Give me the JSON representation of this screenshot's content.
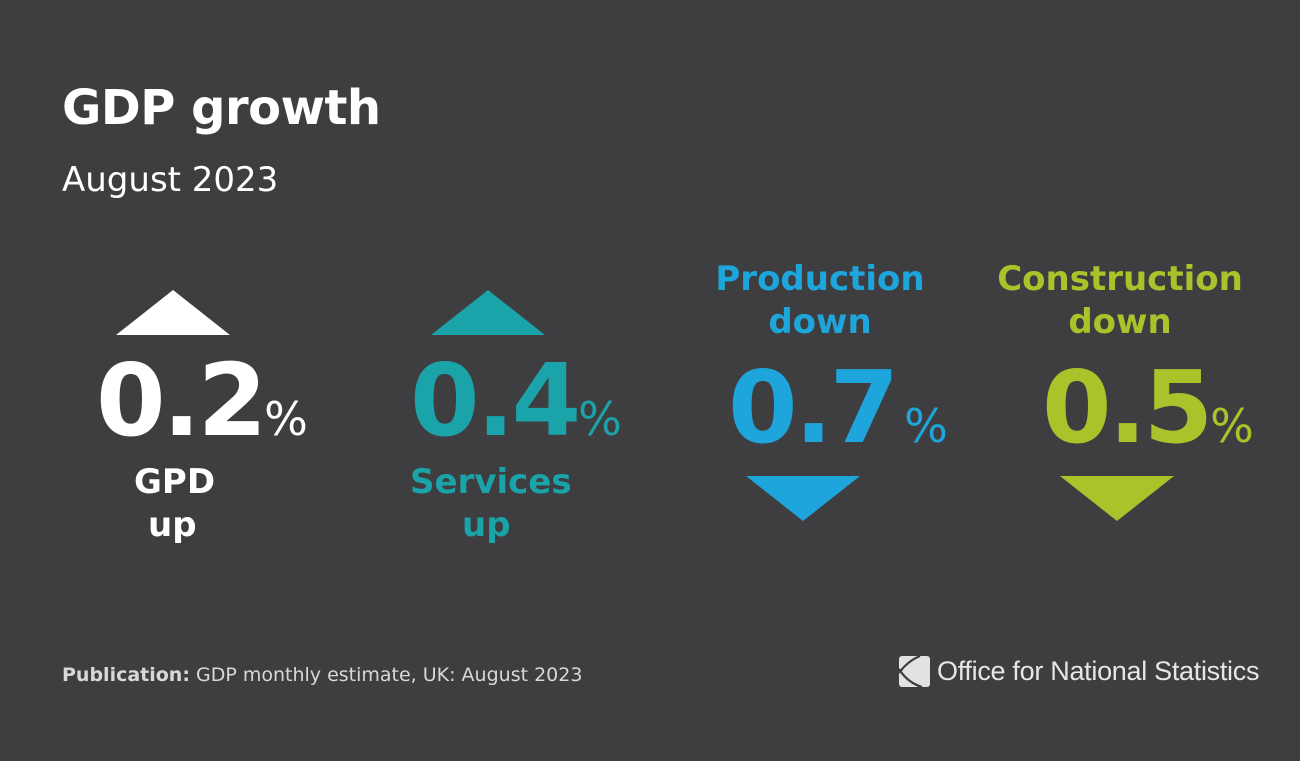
{
  "header": {
    "title": "GDP growth",
    "subtitle": "August 2023"
  },
  "stats": [
    {
      "id": "gdp",
      "value": "0.2",
      "unit": "%",
      "label_line1": "GPD",
      "label_line2": "up",
      "direction": "up",
      "color": "#ffffff"
    },
    {
      "id": "services",
      "value": "0.4",
      "unit": "%",
      "label_line1": "Services",
      "label_line2": "up",
      "direction": "up",
      "color": "#1aa3a8"
    },
    {
      "id": "production",
      "value": "0.7",
      "unit": "%",
      "label_line1": "Production",
      "label_line2": "down",
      "direction": "down",
      "color": "#1ea6dc"
    },
    {
      "id": "construction",
      "value": "0.5",
      "unit": "%",
      "label_line1": "Construction",
      "label_line2": "down",
      "direction": "down",
      "color": "#a9c42a"
    }
  ],
  "footer": {
    "publication_label": "Publication:",
    "publication_text": "GDP monthly estimate, UK: August 2023",
    "org_name_part1": "Office for ",
    "org_name_part2": "National Statistics",
    "logo_icon": "ons-logo-icon"
  },
  "colors": {
    "background": "#3e3e41",
    "white": "#ffffff",
    "services": "#1aa3a8",
    "production": "#1ea6dc",
    "construction": "#a9c42a"
  }
}
